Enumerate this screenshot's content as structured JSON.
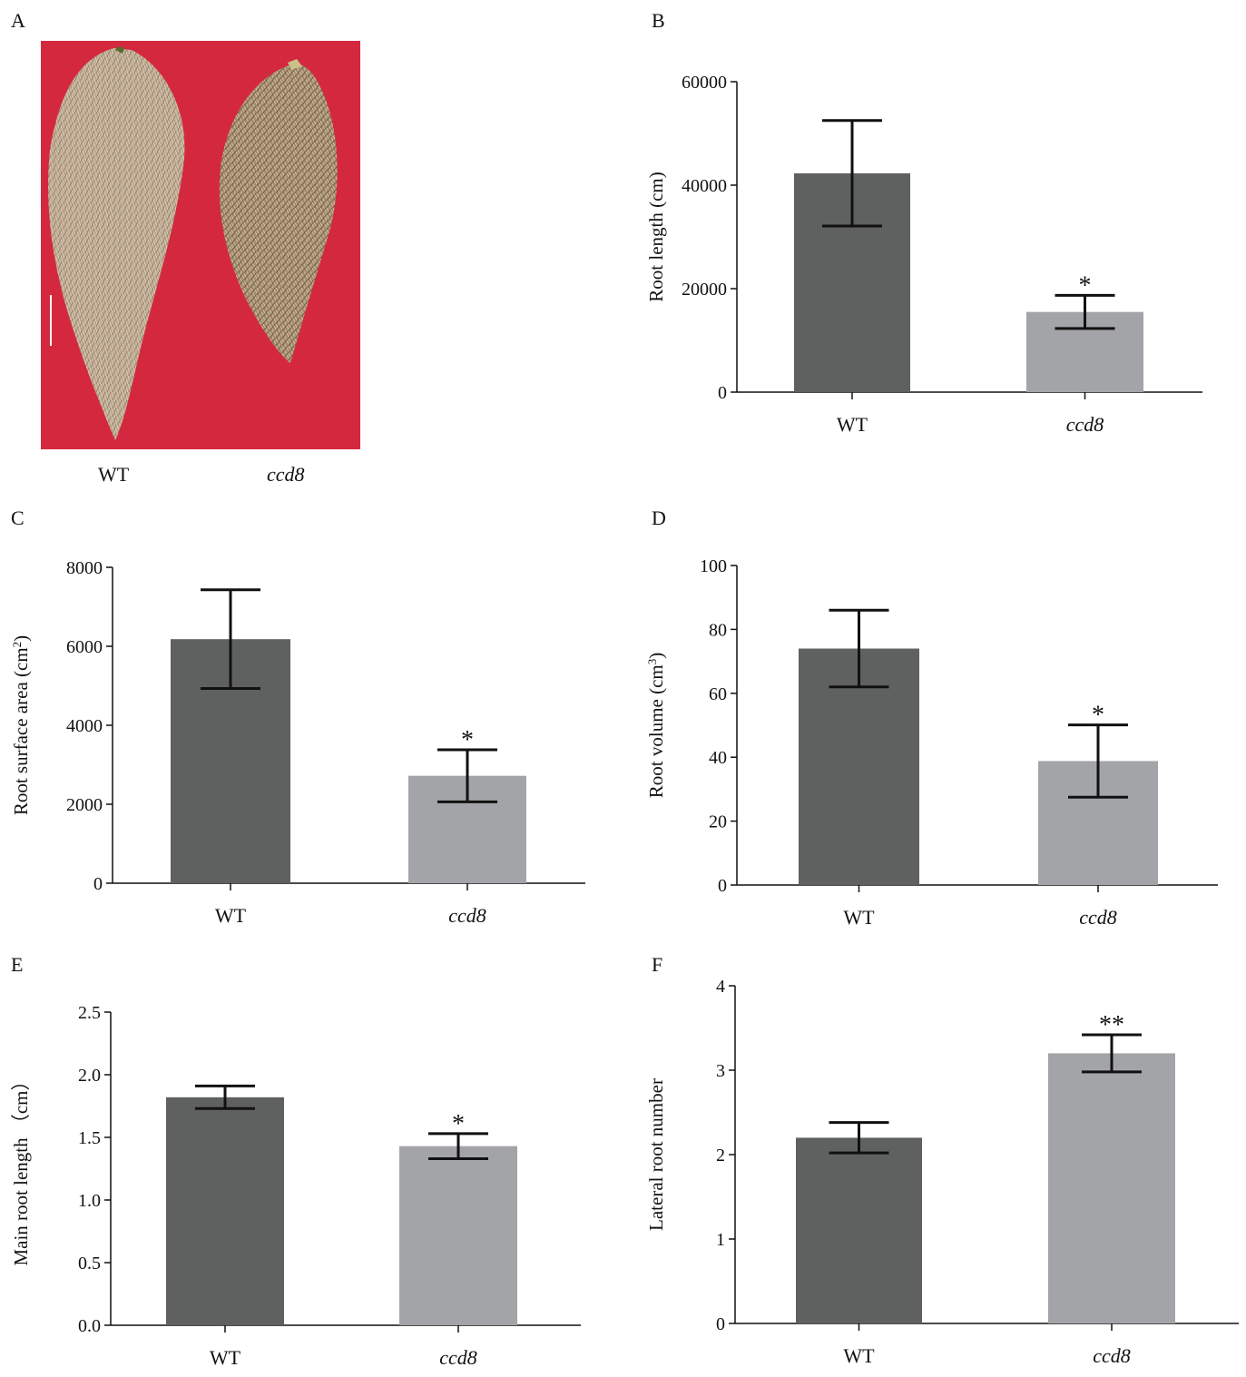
{
  "panels": {
    "a": "A",
    "b": "B",
    "c": "C",
    "d": "D",
    "e": "E",
    "f": "F"
  },
  "photo": {
    "description_icon": "root-photo",
    "categories": [
      "WT",
      "ccd8"
    ],
    "background_color": "#d4283f"
  },
  "colors": {
    "wt_bar": "#5f6160",
    "ccd8_bar": "#a3a4a8",
    "axis": "#111111"
  },
  "chart_data": [
    {
      "id": "B",
      "type": "bar",
      "categories": [
        "WT",
        "ccd8"
      ],
      "values": [
        42300,
        15500
      ],
      "errors": [
        10200,
        3200
      ],
      "significance": [
        "",
        "*"
      ],
      "ylabel": "Root length (cm)",
      "yticks": [
        0,
        20000,
        40000,
        60000
      ],
      "ylim": [
        0,
        60000
      ]
    },
    {
      "id": "C",
      "type": "bar",
      "categories": [
        "WT",
        "ccd8"
      ],
      "values": [
        6180,
        2720
      ],
      "errors": [
        1250,
        660
      ],
      "significance": [
        "",
        "*"
      ],
      "ylabel": "Root surface area (cm",
      "ylabel_sup": "2",
      "ylabel_end": ")",
      "yticks": [
        0,
        2000,
        4000,
        6000,
        8000
      ],
      "ylim": [
        0,
        8000
      ]
    },
    {
      "id": "D",
      "type": "bar",
      "categories": [
        "WT",
        "ccd8"
      ],
      "values": [
        74,
        38.8
      ],
      "errors": [
        12,
        11.3
      ],
      "significance": [
        "",
        "*"
      ],
      "ylabel": "Root volume (cm",
      "ylabel_sup": "3",
      "ylabel_end": ")",
      "yticks": [
        0,
        20,
        40,
        60,
        80,
        100
      ],
      "ylim": [
        0,
        100
      ]
    },
    {
      "id": "E",
      "type": "bar",
      "categories": [
        "WT",
        "ccd8"
      ],
      "values": [
        1.82,
        1.43
      ],
      "errors": [
        0.09,
        0.1
      ],
      "significance": [
        "",
        "*"
      ],
      "ylabel": "Main root length （cm）",
      "yticks": [
        "0.0",
        "0.5",
        "1.0",
        "1.5",
        "2.0",
        "2.5"
      ],
      "ylim": [
        0,
        2.5
      ]
    },
    {
      "id": "F",
      "type": "bar",
      "categories": [
        "WT",
        "ccd8"
      ],
      "values": [
        2.2,
        3.2
      ],
      "errors": [
        0.18,
        0.22
      ],
      "significance": [
        "",
        "**"
      ],
      "ylabel": "Lateral root number",
      "yticks": [
        0,
        1,
        2,
        3,
        4
      ],
      "ylim": [
        0,
        4
      ]
    }
  ]
}
